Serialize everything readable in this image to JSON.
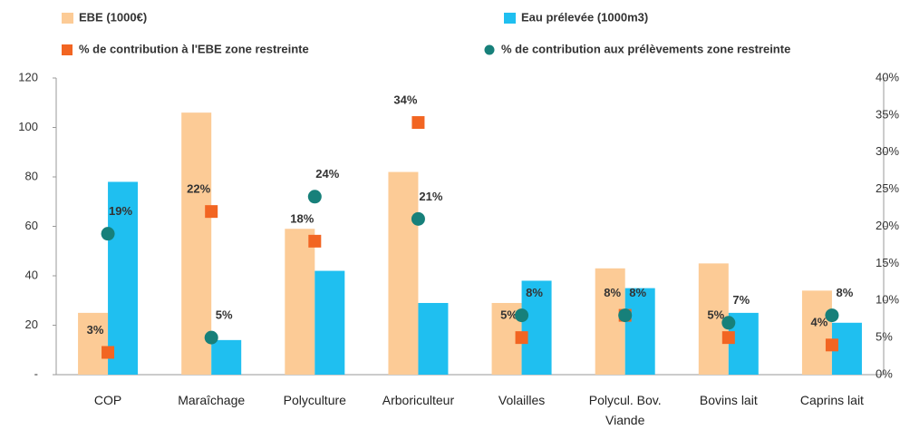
{
  "chart_data": {
    "type": "bar",
    "categories": [
      "COP",
      "Maraîchage",
      "Polyculture",
      "Arboriculteur",
      "Volailles",
      "Polycul. Bov. Viande",
      "Bovins lait",
      "Caprins lait"
    ],
    "series": [
      {
        "name": "EBE (1000€)",
        "type": "bar",
        "color": "#fccb96",
        "values": [
          25,
          106,
          59,
          82,
          29,
          43,
          45,
          34
        ]
      },
      {
        "name": "Eau prélevée (1000m3)",
        "type": "bar",
        "color": "#1fbff0",
        "values": [
          78,
          14,
          42,
          29,
          38,
          35,
          25,
          21
        ]
      },
      {
        "name": "% de contribution à l'EBE zone restreinte",
        "type": "scatter",
        "marker": "square",
        "axis": "y2",
        "color": "#f26522",
        "values": [
          3,
          22,
          18,
          34,
          5,
          8,
          5,
          4
        ],
        "value_labels": [
          "3%",
          "22%",
          "18%",
          "34%",
          "5%",
          "8%",
          "5%",
          "4%"
        ]
      },
      {
        "name": "% de contribution aux prélèvements zone restreinte",
        "type": "scatter",
        "marker": "circle",
        "axis": "y2",
        "color": "#17807a",
        "values": [
          19,
          5,
          24,
          21,
          8,
          8,
          7,
          8
        ],
        "value_labels": [
          "19%",
          "5%",
          "24%",
          "21%",
          "8%",
          "8%",
          "7%",
          "8%"
        ]
      }
    ],
    "ylim": [
      0,
      120
    ],
    "yticks": [
      {
        "value": 0,
        "label": "-"
      },
      20,
      40,
      60,
      80,
      100,
      120
    ],
    "y2lim": [
      0,
      40
    ],
    "y2ticks": [
      {
        "value": 0,
        "label": "0%"
      },
      {
        "value": 5,
        "label": "5%"
      },
      {
        "value": 10,
        "label": "10%"
      },
      {
        "value": 15,
        "label": "15%"
      },
      {
        "value": 20,
        "label": "20%"
      },
      {
        "value": 25,
        "label": "25%"
      },
      {
        "value": 30,
        "label": "30%"
      },
      {
        "value": 35,
        "label": "35%"
      },
      {
        "value": 40,
        "label": "40%"
      }
    ],
    "grid": false
  }
}
